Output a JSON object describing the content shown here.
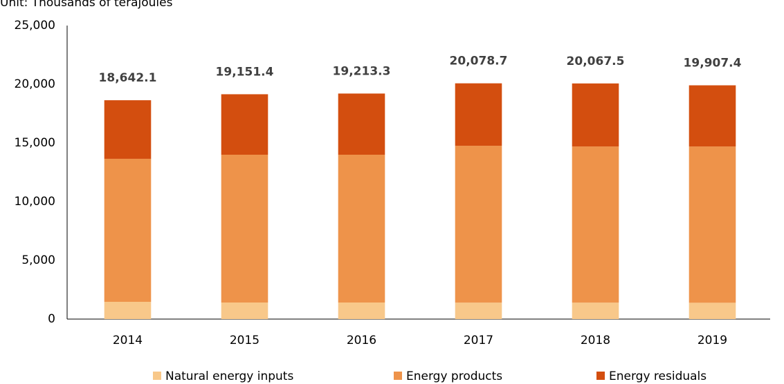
{
  "chart_data": {
    "type": "stacked_bar",
    "subtitle": "Unit: Thousands of terajoules",
    "categories": [
      "2014",
      "2015",
      "2016",
      "2017",
      "2018",
      "2019"
    ],
    "series": [
      {
        "name": "Natural energy inputs",
        "color": "#f8c88a",
        "values": [
          1470,
          1410,
          1410,
          1400,
          1400,
          1390
        ]
      },
      {
        "name": "Energy products",
        "color": "#ee934a",
        "values": [
          12180,
          12590,
          12590,
          13360,
          13300,
          13310
        ]
      },
      {
        "name": "Energy residuals",
        "color": "#d34e0f",
        "values": [
          4990,
          5150,
          5210,
          5320,
          5370,
          5210
        ]
      }
    ],
    "totals": {
      "values": [
        18642.1,
        19151.4,
        19213.3,
        20078.7,
        20067.5,
        19907.4
      ],
      "value_labels": [
        "18,642.1",
        "19,151.4",
        "19,213.3",
        "20,078.7",
        "20,067.5",
        "19,907.4"
      ]
    },
    "ylim": [
      0,
      25000
    ],
    "yticks": [
      0,
      {
        "value": 5000,
        "label": "5,000"
      },
      {
        "value": 10000,
        "label": "10,000"
      },
      {
        "value": 15000,
        "label": "15,000"
      },
      {
        "value": 20000,
        "label": "20,000"
      },
      {
        "value": 25000,
        "label": "25,000"
      }
    ],
    "grid": false,
    "legend": "bottom"
  }
}
